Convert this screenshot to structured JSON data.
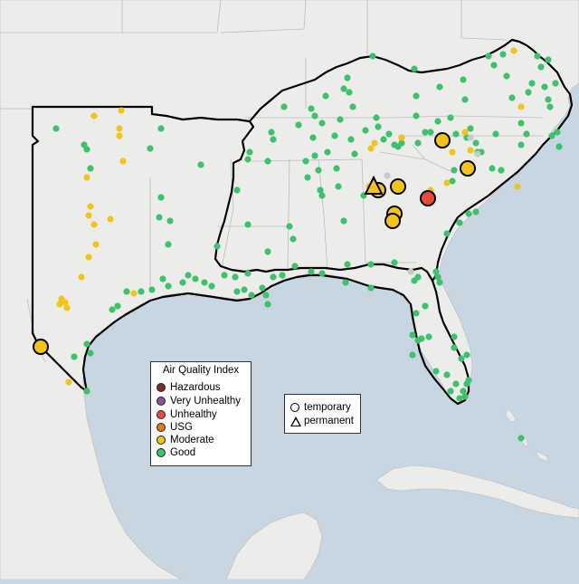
{
  "legend": {
    "title": "Air Quality Index",
    "levels": [
      {
        "label": "Hazardous",
        "color": "#7e2d2a"
      },
      {
        "label": "Very Unhealthy",
        "color": "#8e4fa0"
      },
      {
        "label": "Unhealthy",
        "color": "#e84a3c"
      },
      {
        "label": "USG",
        "color": "#e07a1f"
      },
      {
        "label": "Moderate",
        "color": "#f2c31b"
      },
      {
        "label": "Good",
        "color": "#3cc26a"
      }
    ]
  },
  "monitor_types": {
    "temporary": "temporary",
    "permanent": "permanent"
  },
  "colors": {
    "water": "#c8d6e2",
    "land": "#ececea",
    "border": "#b5b5b5",
    "highlight_outline": "#000000",
    "no_data": "#c8c8c8"
  }
}
